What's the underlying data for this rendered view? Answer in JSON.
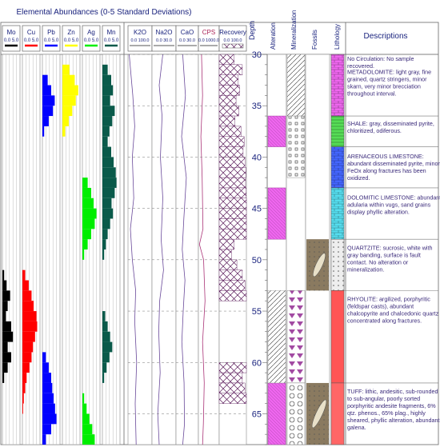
{
  "header": {
    "title": "Elemental Abundances (0-5 Standard Deviations)",
    "column_headers": [
      "Depth",
      "Alteration",
      "Mineralization",
      "Fossils",
      "Lithology",
      "Descriptions"
    ]
  },
  "colors": {
    "Mo": "#000000",
    "Cu": "#ff0000",
    "Pb": "#0000ff",
    "Zn": "#ffff00",
    "Ag": "#00ee00",
    "Mn": "#0a5a4a",
    "text": "#1a237e",
    "alteration": "#ee66ee",
    "lith_dolomite": "#ee66ee",
    "lith_shale": "#55dd55",
    "lith_limestone": "#4466ff",
    "lith_dolomitic": "#55ddee",
    "lith_quartzite": "#eeeeee",
    "lith_rhyolite": "#ff5555",
    "lith_tuff": "#ff6666"
  },
  "chart_data": {
    "type": "strip-log",
    "depth_range": [
      30,
      68
    ],
    "depth_ticks": [
      30,
      35,
      40,
      45,
      50,
      55,
      60,
      65
    ],
    "depth_units": "",
    "elements": [
      {
        "name": "Mo",
        "range": "0.0 5.0",
        "values": [
          [
            30,
            0
          ],
          [
            49,
            0
          ],
          [
            51,
            0.5
          ],
          [
            52,
            1.2
          ],
          [
            53,
            2.2
          ],
          [
            54,
            1.5
          ],
          [
            55,
            1
          ],
          [
            56,
            2.5
          ],
          [
            57,
            3
          ],
          [
            58,
            1.5
          ],
          [
            59,
            2.5
          ],
          [
            60,
            1.5
          ],
          [
            61,
            0.5
          ],
          [
            62,
            0
          ],
          [
            68,
            0
          ]
        ]
      },
      {
        "name": "Cu",
        "range": "0.0 5.0",
        "values": [
          [
            30,
            0
          ],
          [
            50,
            0
          ],
          [
            51,
            0.8
          ],
          [
            52,
            1.8
          ],
          [
            53,
            2.6
          ],
          [
            54,
            3.2
          ],
          [
            55,
            4.0
          ],
          [
            56,
            4.2
          ],
          [
            57,
            3.6
          ],
          [
            58,
            3.0
          ],
          [
            59,
            2.6
          ],
          [
            60,
            2.0
          ],
          [
            61,
            1.2
          ],
          [
            62,
            0.8
          ],
          [
            63,
            0.4
          ],
          [
            64,
            0.2
          ],
          [
            68,
            0
          ]
        ]
      },
      {
        "name": "Pb",
        "range": "0.0 5.0",
        "values": [
          [
            30,
            0
          ],
          [
            32,
            1.5
          ],
          [
            33,
            2.5
          ],
          [
            34,
            3.5
          ],
          [
            35,
            3.0
          ],
          [
            36,
            1.8
          ],
          [
            37,
            0.5
          ],
          [
            38,
            0
          ],
          [
            58,
            0
          ],
          [
            59,
            1.0
          ],
          [
            60,
            1.8
          ],
          [
            61,
            2.5
          ],
          [
            62,
            2.8
          ],
          [
            63,
            3.2
          ],
          [
            64,
            3.6
          ],
          [
            65,
            4.0
          ],
          [
            66,
            2.5
          ],
          [
            67,
            1.0
          ],
          [
            68,
            0.5
          ]
        ]
      },
      {
        "name": "Zn",
        "range": "0.0 5.0",
        "values": [
          [
            30,
            0
          ],
          [
            31,
            2.0
          ],
          [
            32,
            3.5
          ],
          [
            33,
            4.5
          ],
          [
            34,
            3.8
          ],
          [
            35,
            2.8
          ],
          [
            36,
            1.8
          ],
          [
            37,
            0.8
          ],
          [
            38,
            0
          ],
          [
            68,
            0
          ]
        ]
      },
      {
        "name": "Ag",
        "range": "0.0 5.0",
        "values": [
          [
            30,
            0
          ],
          [
            41,
            0
          ],
          [
            42,
            1.5
          ],
          [
            43,
            2.5
          ],
          [
            44,
            3.2
          ],
          [
            45,
            4.0
          ],
          [
            46,
            3.5
          ],
          [
            47,
            2.5
          ],
          [
            48,
            1.5
          ],
          [
            49,
            0.5
          ],
          [
            50,
            0
          ],
          [
            62,
            0
          ],
          [
            63,
            0.5
          ],
          [
            64,
            1.2
          ],
          [
            65,
            2.0
          ],
          [
            66,
            2.8
          ],
          [
            67,
            3.5
          ],
          [
            68,
            4.0
          ]
        ]
      },
      {
        "name": "Mn",
        "range": "0.0 5.0",
        "values": [
          [
            30,
            0
          ],
          [
            31,
            1.5
          ],
          [
            32,
            2.5
          ],
          [
            33,
            3.0
          ],
          [
            34,
            2.2
          ],
          [
            35,
            3.5
          ],
          [
            36,
            2.8
          ],
          [
            37,
            2.0
          ],
          [
            38,
            1.5
          ],
          [
            39,
            2.5
          ],
          [
            40,
            3.2
          ],
          [
            41,
            3.8
          ],
          [
            42,
            4.0
          ],
          [
            43,
            3.5
          ],
          [
            44,
            2.6
          ],
          [
            45,
            3.0
          ],
          [
            46,
            2.2
          ],
          [
            47,
            1.5
          ],
          [
            48,
            1.0
          ],
          [
            49,
            0.5
          ],
          [
            50,
            0
          ],
          [
            54,
            0
          ],
          [
            55,
            0.8
          ],
          [
            56,
            1.5
          ],
          [
            57,
            2.2
          ],
          [
            58,
            2.8
          ],
          [
            59,
            2.0
          ],
          [
            60,
            1.2
          ],
          [
            61,
            0.5
          ],
          [
            62,
            0
          ],
          [
            68,
            0
          ]
        ]
      }
    ],
    "geochem": [
      {
        "name": "K2O",
        "range": "0.0 100.0",
        "values": [
          [
            30,
            0.05
          ],
          [
            34,
            0.2
          ],
          [
            37,
            0.28
          ],
          [
            40,
            0.18
          ],
          [
            44,
            0.24
          ],
          [
            47,
            0.1
          ],
          [
            50,
            0.18
          ],
          [
            53,
            0.32
          ],
          [
            56,
            0.28
          ],
          [
            60,
            0.36
          ],
          [
            64,
            0.3
          ],
          [
            68,
            0.34
          ]
        ]
      },
      {
        "name": "Na2O",
        "range": "0.0 30.0",
        "values": [
          [
            30,
            0.45
          ],
          [
            33,
            0.3
          ],
          [
            36,
            0.42
          ],
          [
            40,
            0.35
          ],
          [
            44,
            0.45
          ],
          [
            48,
            0.38
          ],
          [
            51,
            0.48
          ],
          [
            54,
            0.32
          ],
          [
            57,
            0.28
          ],
          [
            61,
            0.34
          ],
          [
            65,
            0.24
          ],
          [
            68,
            0.3
          ]
        ]
      },
      {
        "name": "CaO",
        "range": "0.0 30.0",
        "values": [
          [
            30,
            0.3
          ],
          [
            34,
            0.42
          ],
          [
            38,
            0.25
          ],
          [
            42,
            0.46
          ],
          [
            46,
            0.35
          ],
          [
            49,
            0.28
          ],
          [
            52,
            0.4
          ],
          [
            55,
            0.32
          ],
          [
            58,
            0.26
          ],
          [
            62,
            0.36
          ],
          [
            66,
            0.38
          ],
          [
            68,
            0.3
          ]
        ]
      },
      {
        "name": "CPS",
        "range": "0.0 1000.0",
        "values": [
          [
            30,
            0.15
          ],
          [
            34,
            0.2
          ],
          [
            38,
            0.12
          ],
          [
            42,
            0.18
          ],
          [
            47,
            0.22
          ],
          [
            48.5,
            0.05
          ],
          [
            50,
            0.25
          ],
          [
            54,
            0.32
          ],
          [
            58,
            0.2
          ],
          [
            62,
            0.28
          ],
          [
            66,
            0.24
          ],
          [
            68,
            0.2
          ]
        ]
      }
    ],
    "recovery": {
      "name": "Recovery",
      "range": "0.0 100.0",
      "values": [
        [
          30,
          0.55
        ],
        [
          31,
          0.85
        ],
        [
          32,
          0.7
        ],
        [
          33,
          0.75
        ],
        [
          34,
          0.62
        ],
        [
          35,
          0.72
        ],
        [
          36,
          0.58
        ],
        [
          37,
          0.8
        ],
        [
          38,
          0.92
        ],
        [
          39,
          0.88
        ],
        [
          40,
          0.95
        ],
        [
          41,
          0.98
        ],
        [
          42,
          0.97
        ],
        [
          43,
          0.99
        ],
        [
          44,
          1.0
        ],
        [
          45,
          1.0
        ],
        [
          46,
          1.0
        ],
        [
          47,
          1.0
        ],
        [
          48,
          0.55
        ],
        [
          49,
          0.45
        ],
        [
          50,
          0.65
        ],
        [
          51,
          0.85
        ],
        [
          52,
          0.95
        ],
        [
          53,
          1.0
        ],
        [
          60,
          1.0
        ],
        [
          61,
          0.85
        ],
        [
          62,
          0.95
        ],
        [
          63,
          1.0
        ],
        [
          68,
          1.0
        ]
      ]
    },
    "alteration_intervals": [
      [
        36,
        39
      ],
      [
        43,
        48
      ],
      [
        62,
        68
      ]
    ],
    "mineralization_intervals": [
      {
        "from": 30,
        "to": 36,
        "pattern": "hatch"
      },
      {
        "from": 36,
        "to": 42,
        "pattern": "squares"
      },
      {
        "from": 53,
        "to": 62,
        "pattern": "triangles"
      },
      {
        "from": 62,
        "to": 68,
        "pattern": "rounds"
      }
    ],
    "fossil_intervals": [
      [
        48,
        53
      ],
      [
        62,
        68
      ]
    ],
    "lithology": [
      {
        "from": 30,
        "to": 36,
        "color_key": "lith_dolomite",
        "pattern": "brick"
      },
      {
        "from": 36,
        "to": 39,
        "color_key": "lith_shale",
        "pattern": "lines"
      },
      {
        "from": 39,
        "to": 43,
        "color_key": "lith_limestone",
        "pattern": "brick"
      },
      {
        "from": 43,
        "to": 48,
        "color_key": "lith_dolomitic",
        "pattern": "brick"
      },
      {
        "from": 48,
        "to": 53,
        "color_key": "lith_quartzite",
        "pattern": "dots"
      },
      {
        "from": 53,
        "to": 62,
        "color_key": "lith_rhyolite",
        "pattern": "plain"
      },
      {
        "from": 62,
        "to": 68,
        "color_key": "lith_tuff",
        "pattern": "plain"
      }
    ]
  },
  "descriptions": [
    {
      "depth": 30,
      "lines": [
        "No Circulation: No sample",
        "recovered."
      ]
    },
    {
      "depth": 31.3,
      "lines": [
        "METADOLOMITE: light gray, fine",
        "grained, quartz stringers, minor",
        "skarn, very minor brecciation",
        "throughout interval."
      ]
    },
    {
      "depth": 36.3,
      "lines": [
        "SHALE: gray, disseminated pyrite,",
        "chloritized, odiferous."
      ]
    },
    {
      "depth": 39.5,
      "lines": [
        "ARENACEOUS LIMESTONE:",
        "abundant disseminated pyrite, minor",
        "FeOx along fractures has been",
        "oxidized."
      ]
    },
    {
      "depth": 43.5,
      "lines": [
        "DOLOMITIC LIMESTONE: abundant",
        "adularia within vugs, sand grains",
        "display phyllic alteration."
      ]
    },
    {
      "depth": 48.4,
      "lines": [
        "QUARTZITE: sucrosic, white with",
        "gray banding, surface is fault",
        "contact. No alteration or",
        "mineralization."
      ]
    },
    {
      "depth": 53.4,
      "lines": [
        "RHYOLITE: argilized, porphyritic",
        "(feldspar casts), abundant",
        "chalcopyrite and chalcedonic quartz",
        "concentrated along fractures."
      ]
    },
    {
      "depth": 62.4,
      "lines": [
        "TUFF: lithic, andesitic, sub-rounded",
        "to sub-angular, poorly sorted",
        "porphyritic andesite fragments, 6%",
        "qtz. phenos., 65% plag., highly",
        "sheared, phyllic alteration, abundant",
        "galena."
      ]
    }
  ]
}
